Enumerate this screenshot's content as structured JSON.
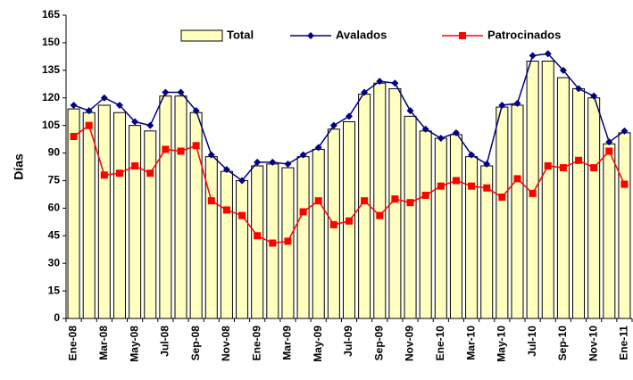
{
  "chart_data": {
    "type": "bar",
    "y_label": "Días",
    "categories": [
      "Ene-08",
      null,
      "Mar-08",
      null,
      "May-08",
      null,
      "Jul-08",
      null,
      "Sep-08",
      null,
      "Nov-08",
      null,
      "Ene-09",
      null,
      "Mar-09",
      null,
      "May-09",
      null,
      "Jul-09",
      null,
      "Sep-09",
      null,
      "Nov-09",
      null,
      "Ene-10",
      null,
      "Mar-10",
      null,
      "May-10",
      null,
      "Jul-10",
      null,
      "Sep-10",
      null,
      "Nov-10",
      null,
      "Ene-11"
    ],
    "series": [
      {
        "name": "Total",
        "type": "bar",
        "color": "#ffffc0",
        "values": [
          114,
          112,
          116,
          112,
          105,
          102,
          121,
          121,
          112,
          88,
          80,
          75,
          83,
          84,
          82,
          88,
          92,
          103,
          107,
          122,
          128,
          125,
          110,
          102,
          98,
          100,
          88,
          83,
          115,
          116,
          140,
          140,
          131,
          125,
          120,
          95,
          101
        ]
      },
      {
        "name": "Avalados",
        "type": "line",
        "color": "#000080",
        "values": [
          116,
          113,
          120,
          116,
          107,
          105,
          123,
          123,
          113,
          89,
          81,
          75,
          85,
          85,
          84,
          89,
          93,
          105,
          110,
          123,
          129,
          128,
          113,
          103,
          98,
          101,
          89,
          84,
          116,
          117,
          143,
          144,
          135,
          125,
          121,
          96,
          102
        ]
      },
      {
        "name": "Patrocinados",
        "type": "line",
        "color": "#ff0000",
        "values": [
          99,
          105,
          78,
          79,
          83,
          79,
          92,
          91,
          94,
          64,
          59,
          56,
          45,
          41,
          42,
          58,
          64,
          51,
          53,
          64,
          56,
          65,
          63,
          67,
          72,
          75,
          72,
          71,
          66,
          76,
          68,
          83,
          82,
          86,
          82,
          91,
          73
        ]
      }
    ],
    "ylim": [
      0,
      165
    ],
    "yticks": [
      0,
      15,
      30,
      45,
      60,
      75,
      90,
      105,
      120,
      135,
      150,
      165
    ],
    "grid": false,
    "legend": "top"
  }
}
